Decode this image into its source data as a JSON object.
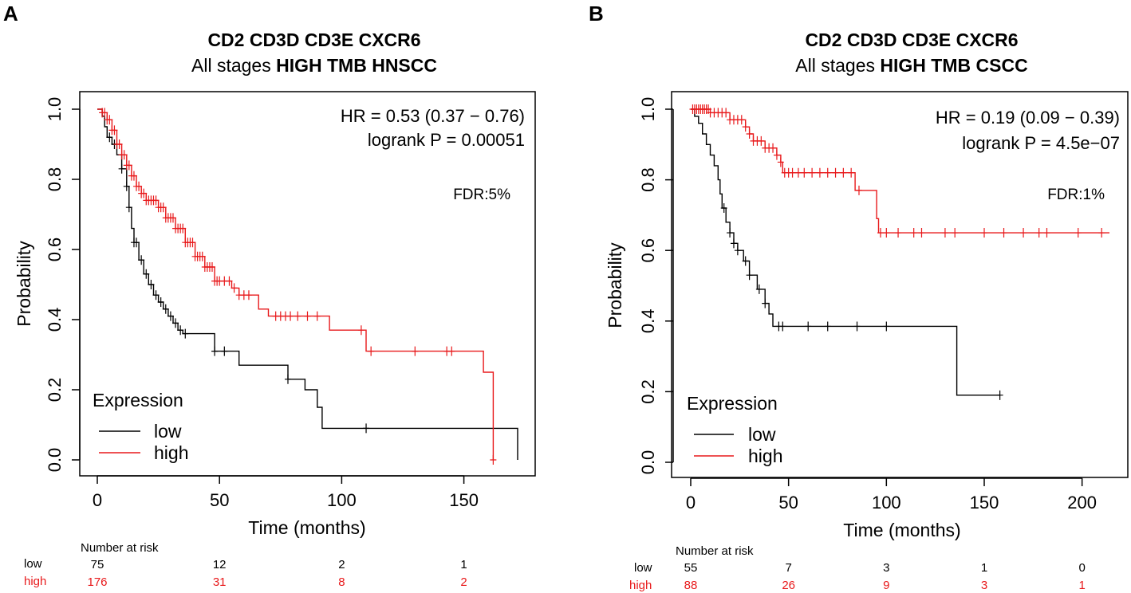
{
  "chart_data": [
    {
      "panel": "A",
      "type": "line",
      "subtype": "kaplan-meier",
      "title_line1": "CD2 CD3D CD3E CXCR6",
      "title_line2_normal": "All stages ",
      "title_line2_bold": "HIGH TMB HNSCC",
      "xlabel": "Time (months)",
      "ylabel": "Probability",
      "xlim": [
        0,
        172
      ],
      "ylim": [
        0,
        1
      ],
      "xticks": [
        "0",
        "50",
        "100",
        "150"
      ],
      "xtick_values": [
        0,
        50,
        100,
        150
      ],
      "yticks": [
        "0.0",
        "0.2",
        "0.4",
        "0.6",
        "0.8",
        "1.0"
      ],
      "ytick_values": [
        0,
        0.2,
        0.4,
        0.6,
        0.8,
        1.0
      ],
      "hr_text": "HR = 0.53 (0.37 − 0.76)",
      "p_text": "logrank P = 0.00051",
      "fdr_text": "FDR:5%",
      "legend": {
        "title": "Expression",
        "placement": "bottom-left",
        "items": [
          "low",
          "high"
        ]
      },
      "series": [
        {
          "name": "low",
          "color": "#000000",
          "steps": [
            [
              0,
              1.0
            ],
            [
              2,
              0.98
            ],
            [
              3,
              0.95
            ],
            [
              4,
              0.92
            ],
            [
              6,
              0.9
            ],
            [
              8,
              0.87
            ],
            [
              10,
              0.83
            ],
            [
              12,
              0.78
            ],
            [
              13,
              0.72
            ],
            [
              14,
              0.66
            ],
            [
              15,
              0.62
            ],
            [
              17,
              0.57
            ],
            [
              19,
              0.53
            ],
            [
              21,
              0.5
            ],
            [
              23,
              0.47
            ],
            [
              25,
              0.45
            ],
            [
              27,
              0.43
            ],
            [
              29,
              0.41
            ],
            [
              31,
              0.39
            ],
            [
              33,
              0.37
            ],
            [
              35,
              0.36
            ],
            [
              48,
              0.31
            ],
            [
              58,
              0.27
            ],
            [
              78,
              0.23
            ],
            [
              85,
              0.2
            ],
            [
              90,
              0.15
            ],
            [
              92,
              0.09
            ],
            [
              172,
              0.09
            ],
            [
              172,
              0.0
            ]
          ],
          "censor_times": [
            5,
            7,
            10,
            12,
            13,
            15,
            16,
            18,
            20,
            22,
            24,
            26,
            28,
            30,
            32,
            34,
            36,
            48,
            52,
            78,
            110
          ]
        },
        {
          "name": "high",
          "color": "#e8191b",
          "steps": [
            [
              0,
              1.0
            ],
            [
              2,
              0.99
            ],
            [
              4,
              0.97
            ],
            [
              6,
              0.94
            ],
            [
              8,
              0.9
            ],
            [
              10,
              0.87
            ],
            [
              12,
              0.84
            ],
            [
              14,
              0.81
            ],
            [
              16,
              0.78
            ],
            [
              18,
              0.76
            ],
            [
              20,
              0.74
            ],
            [
              25,
              0.72
            ],
            [
              28,
              0.69
            ],
            [
              32,
              0.66
            ],
            [
              36,
              0.62
            ],
            [
              40,
              0.58
            ],
            [
              44,
              0.55
            ],
            [
              48,
              0.51
            ],
            [
              55,
              0.49
            ],
            [
              58,
              0.47
            ],
            [
              66,
              0.43
            ],
            [
              70,
              0.41
            ],
            [
              95,
              0.37
            ],
            [
              110,
              0.31
            ],
            [
              158,
              0.25
            ],
            [
              162,
              0.0
            ]
          ],
          "censor_times": [
            2,
            3,
            4,
            5,
            6,
            7,
            8,
            9,
            10,
            11,
            12,
            13,
            14,
            15,
            16,
            17,
            18,
            19,
            20,
            21,
            22,
            23,
            24,
            25,
            26,
            27,
            28,
            29,
            30,
            31,
            32,
            33,
            34,
            35,
            36,
            37,
            38,
            39,
            40,
            41,
            42,
            43,
            44,
            45,
            46,
            47,
            48,
            49,
            50,
            52,
            54,
            56,
            58,
            60,
            62,
            73,
            75,
            77,
            79,
            82,
            86,
            90,
            108,
            112,
            130,
            143,
            145,
            162
          ]
        }
      ],
      "number_at_risk": {
        "header": "Number at risk",
        "rows": [
          {
            "label": "low",
            "color": "#000000",
            "values": [
              "75",
              "12",
              "2",
              "1"
            ]
          },
          {
            "label": "high",
            "color": "#e8191b",
            "values": [
              "176",
              "31",
              "8",
              "2"
            ]
          }
        ]
      }
    },
    {
      "panel": "B",
      "type": "line",
      "subtype": "kaplan-meier",
      "title_line1": "CD2 CD3D CD3E CXCR6",
      "title_line2_normal": "All stages ",
      "title_line2_bold": "HIGH TMB CSCC",
      "xlabel": "Time (months)",
      "ylabel": "Probability",
      "xlim": [
        0,
        214
      ],
      "ylim": [
        0,
        1
      ],
      "xticks": [
        "0",
        "50",
        "100",
        "150",
        "200"
      ],
      "xtick_values": [
        0,
        50,
        100,
        150,
        200
      ],
      "yticks": [
        "0.0",
        "0.2",
        "0.4",
        "0.6",
        "0.8",
        "1.0"
      ],
      "ytick_values": [
        0,
        0.2,
        0.4,
        0.6,
        0.8,
        1.0
      ],
      "hr_text": "HR = 0.19 (0.09 − 0.39)",
      "p_text": "logrank P = 4.5e−07",
      "fdr_text": "FDR:1%",
      "legend": {
        "title": "Expression",
        "placement": "bottom-left",
        "items": [
          "low",
          "high"
        ]
      },
      "series": [
        {
          "name": "low",
          "color": "#000000",
          "steps": [
            [
              0,
              1.0
            ],
            [
              2,
              0.98
            ],
            [
              4,
              0.96
            ],
            [
              6,
              0.93
            ],
            [
              8,
              0.9
            ],
            [
              10,
              0.87
            ],
            [
              12,
              0.84
            ],
            [
              14,
              0.8
            ],
            [
              15,
              0.76
            ],
            [
              16,
              0.72
            ],
            [
              18,
              0.68
            ],
            [
              20,
              0.65
            ],
            [
              22,
              0.62
            ],
            [
              24,
              0.6
            ],
            [
              27,
              0.57
            ],
            [
              30,
              0.53
            ],
            [
              34,
              0.49
            ],
            [
              38,
              0.45
            ],
            [
              40,
              0.42
            ],
            [
              42,
              0.385
            ],
            [
              136,
              0.385
            ],
            [
              136,
              0.19
            ],
            [
              158,
              0.19
            ]
          ],
          "censor_times": [
            17,
            20,
            22,
            24,
            28,
            30,
            35,
            38,
            45,
            47,
            60,
            70,
            85,
            100,
            158
          ]
        },
        {
          "name": "high",
          "color": "#e8191b",
          "steps": [
            [
              0,
              1.0
            ],
            [
              10,
              0.99
            ],
            [
              20,
              0.97
            ],
            [
              28,
              0.95
            ],
            [
              30,
              0.93
            ],
            [
              32,
              0.91
            ],
            [
              38,
              0.89
            ],
            [
              44,
              0.87
            ],
            [
              46,
              0.85
            ],
            [
              47,
              0.82
            ],
            [
              84,
              0.77
            ],
            [
              95,
              0.69
            ],
            [
              96,
              0.65
            ],
            [
              214,
              0.65
            ]
          ],
          "censor_times": [
            1,
            2,
            3,
            4,
            5,
            6,
            7,
            8,
            9,
            10,
            12,
            14,
            16,
            18,
            20,
            22,
            24,
            26,
            28,
            30,
            32,
            34,
            36,
            38,
            40,
            42,
            44,
            46,
            48,
            50,
            52,
            55,
            58,
            62,
            66,
            70,
            74,
            78,
            82,
            86,
            97,
            100,
            106,
            114,
            118,
            130,
            135,
            150,
            160,
            170,
            178,
            182,
            198,
            210
          ]
        }
      ],
      "number_at_risk": {
        "header": "Number at risk",
        "rows": [
          {
            "label": "low",
            "color": "#000000",
            "values": [
              "55",
              "7",
              "3",
              "1",
              "0"
            ]
          },
          {
            "label": "high",
            "color": "#e8191b",
            "values": [
              "88",
              "26",
              "9",
              "3",
              "1"
            ]
          }
        ]
      }
    }
  ]
}
